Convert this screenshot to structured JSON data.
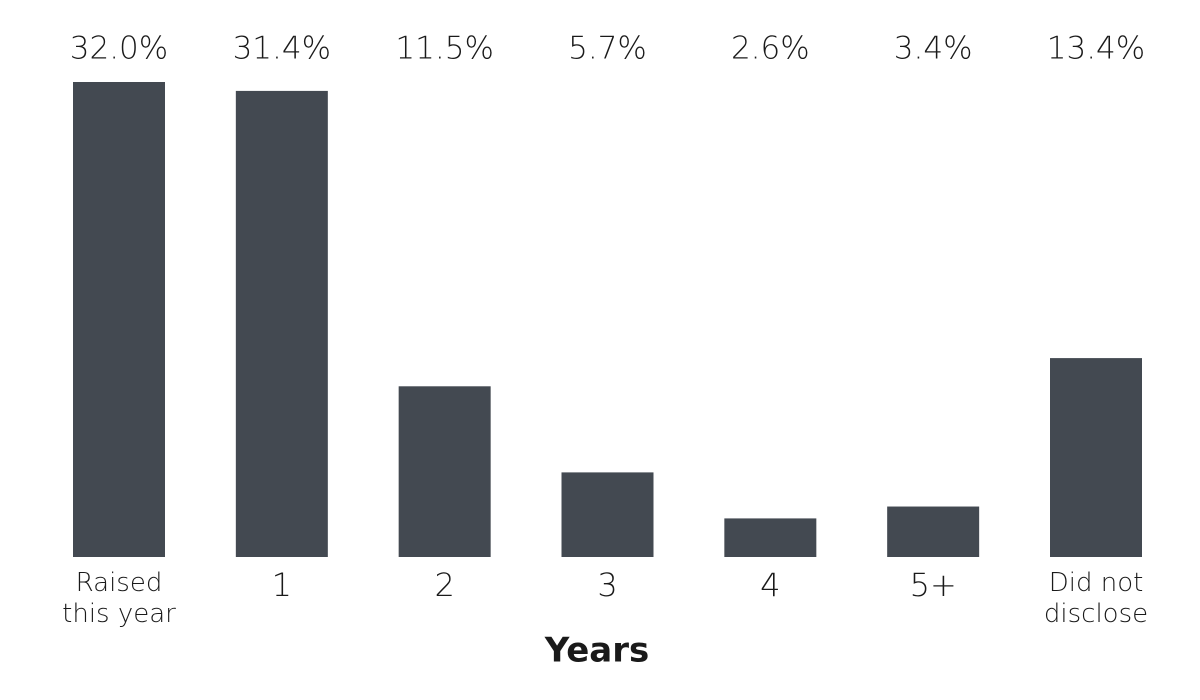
{
  "chart_data": {
    "type": "bar",
    "x_label": "Years",
    "categories": [
      "Raised this year",
      "1",
      "2",
      "3",
      "4",
      "5+",
      "Did not disclose"
    ],
    "values": [
      32.0,
      31.4,
      11.5,
      5.7,
      2.6,
      3.4,
      13.4
    ],
    "value_labels": [
      "32.0%",
      "31.4%",
      "11.5%",
      "5.7%",
      "2.6%",
      "3.4%",
      "13.4%"
    ],
    "color": "#434951"
  }
}
